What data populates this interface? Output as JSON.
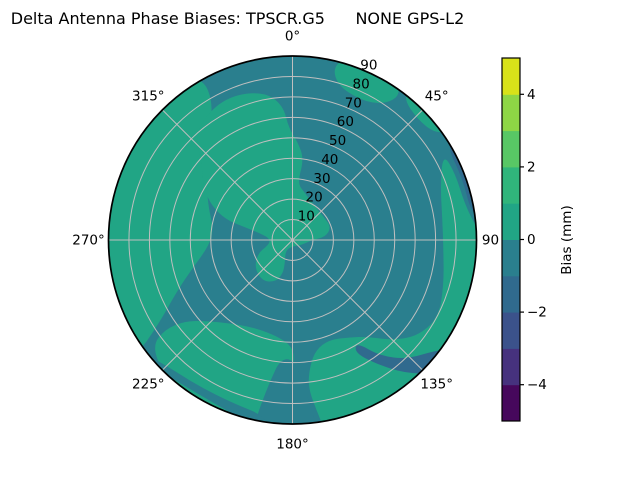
{
  "title": "Delta Antenna Phase Biases: TPSCR.G5      NONE GPS-L2",
  "chart_data": {
    "type": "polar_contour_filled",
    "description": "Antenna phase bias map over the sky: azimuth 0-360 deg (0 at top, clockwise), elevation rings 10-90. Filled contour bands of bias in mm (viridis colormap, levels every 1 mm from -5 to 5). Most of the map lies in the -1 to 0 mm band (teal) and 0 to 1 mm band (green), with small -2 to -1 mm patches near the east and southeast edge.",
    "theta_tick_labels": [
      "0°",
      "45°",
      "90",
      "135°",
      "180°",
      "225°",
      "270°",
      "315°"
    ],
    "theta_tick_angles": [
      0,
      45,
      90,
      135,
      180,
      225,
      270,
      315
    ],
    "radial_tick_labels": [
      "10",
      "20",
      "30",
      "40",
      "50",
      "60",
      "70",
      "80",
      "90"
    ],
    "radial_tick_values": [
      10,
      20,
      30,
      40,
      50,
      60,
      70,
      80,
      90
    ],
    "radial_label_angle_deg": 22.5,
    "r_max": 90,
    "grid": true,
    "grid_color": "#bfbfbf",
    "outline_color": "#000000",
    "background_color": "#ffffff",
    "base_fill": {
      "band_mm": [
        -1,
        0
      ],
      "color": "#2a7f8e"
    },
    "colorbar": {
      "label": "Bias (mm)",
      "range_mm": [
        -5,
        5
      ],
      "tick_values": [
        4,
        2,
        0,
        -2,
        -4
      ],
      "tick_labels": [
        "4",
        "2",
        "0",
        "−2",
        "−4"
      ],
      "bands": [
        {
          "range_mm": [
            -5,
            -4
          ],
          "color": "#46085c"
        },
        {
          "range_mm": [
            -4,
            -3
          ],
          "color": "#46327e"
        },
        {
          "range_mm": [
            -3,
            -2
          ],
          "color": "#3b528b"
        },
        {
          "range_mm": [
            -2,
            -1
          ],
          "color": "#306a8e"
        },
        {
          "range_mm": [
            -1,
            0
          ],
          "color": "#2a7f8e"
        },
        {
          "range_mm": [
            0,
            1
          ],
          "color": "#21a585"
        },
        {
          "range_mm": [
            1,
            2
          ],
          "color": "#30b57b"
        },
        {
          "range_mm": [
            2,
            3
          ],
          "color": "#58c765"
        },
        {
          "range_mm": [
            3,
            4
          ],
          "color": "#8ed645"
        },
        {
          "range_mm": [
            4,
            5
          ],
          "color": "#d8e219"
        }
      ]
    },
    "regions": [
      {
        "name": "west-band",
        "band_mm": [
          0,
          1
        ],
        "color": "#21a585",
        "points": [
          [
            233,
            97
          ],
          [
            252,
            97
          ],
          [
            272,
            97
          ],
          [
            292,
            97
          ],
          [
            310,
            97
          ],
          [
            325,
            97
          ],
          [
            331,
            90
          ],
          [
            330,
            78
          ],
          [
            322,
            66
          ],
          [
            313,
            57
          ],
          [
            303,
            50
          ],
          [
            291,
            44
          ],
          [
            278,
            39
          ],
          [
            266,
            41
          ],
          [
            255,
            50
          ],
          [
            246,
            62
          ],
          [
            238,
            77
          ]
        ]
      },
      {
        "name": "southwest-blob",
        "band_mm": [
          0,
          1
        ],
        "color": "#21a585",
        "points": [
          [
            183,
            50
          ],
          [
            193,
            47
          ],
          [
            205,
            47
          ],
          [
            217,
            51
          ],
          [
            227,
            58
          ],
          [
            233,
            66
          ],
          [
            235,
            76
          ],
          [
            233,
            86
          ],
          [
            224,
            91
          ],
          [
            212,
            93
          ],
          [
            200,
            92
          ],
          [
            190,
            88
          ],
          [
            184,
            78
          ],
          [
            180,
            64
          ],
          [
            179,
            55
          ]
        ]
      },
      {
        "name": "north-cap",
        "band_mm": [
          0,
          1
        ],
        "color": "#21a585",
        "points": [
          [
            336,
            77
          ],
          [
            349,
            74
          ],
          [
            356,
            66
          ],
          [
            358,
            55
          ],
          [
            3,
            48
          ],
          [
            8,
            40
          ],
          [
            5,
            28
          ],
          [
            14,
            24
          ],
          [
            32,
            20
          ],
          [
            52,
            19
          ],
          [
            72,
            20
          ],
          [
            85,
            16
          ],
          [
            89,
            10
          ],
          [
            120,
            5
          ],
          [
            170,
            3
          ],
          [
            215,
            6
          ],
          [
            198,
            12
          ],
          [
            196,
            17
          ],
          [
            202,
            22
          ],
          [
            216,
            25
          ],
          [
            234,
            23
          ],
          [
            249,
            18
          ],
          [
            256,
            13
          ],
          [
            266,
            11
          ],
          [
            276,
            12
          ],
          [
            282,
            17
          ],
          [
            285,
            24
          ],
          [
            287,
            34
          ],
          [
            293,
            43
          ],
          [
            300,
            50
          ],
          [
            308,
            56
          ],
          [
            313,
            62
          ],
          [
            316,
            68
          ],
          [
            324,
            74
          ]
        ]
      },
      {
        "name": "east-south-band",
        "band_mm": [
          0,
          1
        ],
        "color": "#21a585",
        "points": [
          [
            60,
            85
          ],
          [
            70,
            77
          ],
          [
            82,
            74
          ],
          [
            94,
            74
          ],
          [
            106,
            77
          ],
          [
            118,
            81
          ],
          [
            128,
            77
          ],
          [
            136,
            68
          ],
          [
            142,
            60
          ],
          [
            150,
            55
          ],
          [
            160,
            52
          ],
          [
            168,
            55
          ],
          [
            172,
            62
          ],
          [
            174,
            72
          ],
          [
            172,
            84
          ],
          [
            170,
            97
          ],
          [
            158,
            97
          ],
          [
            144,
            97
          ],
          [
            130,
            97
          ],
          [
            116,
            97
          ],
          [
            102,
            97
          ],
          [
            92,
            97
          ],
          [
            86,
            90
          ],
          [
            78,
            86
          ],
          [
            68,
            86
          ]
        ]
      },
      {
        "name": "northeast-patch",
        "band_mm": [
          0,
          1
        ],
        "color": "#21a585",
        "points": [
          [
            16,
            79
          ],
          [
            26,
            76
          ],
          [
            34,
            80
          ],
          [
            37,
            89
          ],
          [
            30,
            97
          ],
          [
            19,
            97
          ],
          [
            13,
            88
          ]
        ]
      },
      {
        "name": "northeast-edge-sliver",
        "band_mm": [
          0,
          1
        ],
        "color": "#21a585",
        "points": [
          [
            38,
            88
          ],
          [
            46,
            85
          ],
          [
            53,
            87
          ],
          [
            55,
            93
          ],
          [
            46,
            97
          ],
          [
            38,
            95
          ]
        ]
      },
      {
        "name": "south-teal-wedge",
        "band_mm": [
          -1,
          0
        ],
        "color": "#2a7f8e",
        "points": [
          [
            172,
            97
          ],
          [
            174,
            82
          ],
          [
            176,
            68
          ],
          [
            180,
            58
          ],
          [
            186,
            59
          ],
          [
            189,
            70
          ],
          [
            191,
            83
          ],
          [
            192,
            97
          ]
        ]
      },
      {
        "name": "southwest-teal-edge-ring",
        "band_mm": [
          -1,
          0
        ],
        "color": "#2a7f8e",
        "points": [
          [
            186,
            97
          ],
          [
            189,
            87
          ],
          [
            200,
            85
          ],
          [
            213,
            85
          ],
          [
            225,
            87
          ],
          [
            232,
            91
          ],
          [
            235,
            97
          ]
        ]
      },
      {
        "name": "east-edge-dark-sliver",
        "band_mm": [
          -2,
          -1
        ],
        "color": "#306a8e",
        "points": [
          [
            58,
            88.5
          ],
          [
            70,
            88.5
          ],
          [
            82,
            88.5
          ],
          [
            85,
            97
          ],
          [
            71,
            97
          ],
          [
            58,
            97
          ]
        ]
      },
      {
        "name": "southeast-dark-streak",
        "band_mm": [
          -2,
          -1
        ],
        "color": "#306a8e",
        "points": [
          [
            148,
            59
          ],
          [
            143,
            71
          ],
          [
            136,
            81
          ],
          [
            128,
            88
          ],
          [
            124,
            95
          ],
          [
            133,
            96
          ],
          [
            140,
            85
          ],
          [
            146,
            73
          ],
          [
            151,
            63
          ]
        ]
      }
    ]
  }
}
